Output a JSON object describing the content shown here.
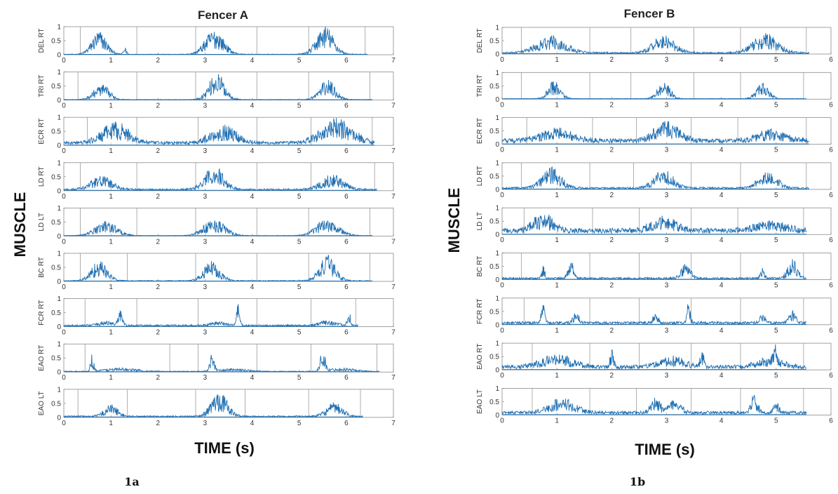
{
  "chart_data": [
    {
      "type": "line",
      "title": "Fencer A",
      "xlabel": "TIME (s)",
      "ylabel": "MUSCLE",
      "caption": "1a",
      "xlim": [
        0,
        7
      ],
      "ylim": [
        0,
        1
      ],
      "xticks": [
        "0",
        "1",
        "2",
        "3",
        "4",
        "5",
        "6",
        "7"
      ],
      "yticks": [
        "0",
        "0.5",
        "1"
      ],
      "color": "#1f6fb2",
      "channels": [
        {
          "name": "DEL RT",
          "markers": [
            0.35,
            1.55,
            2.8,
            4.1,
            5.2,
            6.4
          ],
          "bursts": [
            {
              "c": 0.75,
              "w": 0.28,
              "a": 0.7
            },
            {
              "c": 1.3,
              "w": 0.06,
              "a": 0.2
            },
            {
              "c": 3.2,
              "w": 0.35,
              "a": 0.75
            },
            {
              "c": 5.55,
              "w": 0.32,
              "a": 0.85
            }
          ],
          "base": 0.02
        },
        {
          "name": "TRI RT",
          "markers": [
            0.3,
            1.55,
            2.8,
            4.1,
            5.2,
            6.5
          ],
          "bursts": [
            {
              "c": 0.8,
              "w": 0.3,
              "a": 0.45
            },
            {
              "c": 3.25,
              "w": 0.3,
              "a": 0.8
            },
            {
              "c": 5.6,
              "w": 0.3,
              "a": 0.6
            }
          ],
          "base": 0.02
        },
        {
          "name": "ECR RT",
          "markers": [
            0.5,
            1.55,
            2.85,
            4.1,
            5.25,
            6.55
          ],
          "bursts": [
            {
              "c": 1.1,
              "w": 0.5,
              "a": 0.6
            },
            {
              "c": 3.4,
              "w": 0.5,
              "a": 0.5
            },
            {
              "c": 5.8,
              "w": 0.6,
              "a": 0.7
            }
          ],
          "base": 0.12
        },
        {
          "name": "LD RT",
          "markers": [
            0.35,
            1.55,
            2.8,
            4.1,
            5.25,
            6.6
          ],
          "bursts": [
            {
              "c": 0.8,
              "w": 0.4,
              "a": 0.4
            },
            {
              "c": 3.2,
              "w": 0.35,
              "a": 0.7
            },
            {
              "c": 5.7,
              "w": 0.4,
              "a": 0.45
            }
          ],
          "base": 0.06
        },
        {
          "name": "LD LT",
          "markers": [
            0.35,
            1.55,
            2.8,
            4.1,
            5.2,
            6.5
          ],
          "bursts": [
            {
              "c": 0.9,
              "w": 0.4,
              "a": 0.45
            },
            {
              "c": 3.2,
              "w": 0.4,
              "a": 0.5
            },
            {
              "c": 5.6,
              "w": 0.4,
              "a": 0.55
            }
          ],
          "base": 0.02
        },
        {
          "name": "BC RT",
          "markers": [
            0.35,
            1.35,
            2.8,
            4.1,
            5.2,
            6.5
          ],
          "bursts": [
            {
              "c": 0.75,
              "w": 0.3,
              "a": 0.6
            },
            {
              "c": 3.15,
              "w": 0.3,
              "a": 0.6
            },
            {
              "c": 5.6,
              "w": 0.3,
              "a": 0.75
            }
          ],
          "base": 0.03
        },
        {
          "name": "FCR RT",
          "markers": [
            0.45,
            1.55,
            2.85,
            4.1,
            5.25,
            6.2
          ],
          "bursts": [
            {
              "c": 1.2,
              "w": 0.08,
              "a": 0.5
            },
            {
              "c": 3.7,
              "w": 0.06,
              "a": 0.65
            },
            {
              "c": 6.05,
              "w": 0.06,
              "a": 0.5
            },
            {
              "c": 0.9,
              "w": 0.3,
              "a": 0.12
            },
            {
              "c": 3.3,
              "w": 0.3,
              "a": 0.1
            },
            {
              "c": 5.6,
              "w": 0.3,
              "a": 0.15
            }
          ],
          "base": 0.06
        },
        {
          "name": "EAO RT",
          "markers": [
            0.45,
            2.25,
            2.85,
            4.1,
            5.25,
            6.65
          ],
          "bursts": [
            {
              "c": 0.6,
              "w": 0.06,
              "a": 0.5
            },
            {
              "c": 3.15,
              "w": 0.08,
              "a": 0.55
            },
            {
              "c": 5.5,
              "w": 0.08,
              "a": 0.75
            },
            {
              "c": 1.2,
              "w": 0.6,
              "a": 0.1
            },
            {
              "c": 3.6,
              "w": 0.5,
              "a": 0.08
            },
            {
              "c": 5.9,
              "w": 0.5,
              "a": 0.1
            }
          ],
          "base": 0.03
        },
        {
          "name": "EAO LT",
          "markers": [
            0.3,
            1.35,
            2.8,
            3.85,
            5.2,
            6.3
          ],
          "bursts": [
            {
              "c": 1.0,
              "w": 0.25,
              "a": 0.35
            },
            {
              "c": 3.3,
              "w": 0.3,
              "a": 0.75
            },
            {
              "c": 5.75,
              "w": 0.3,
              "a": 0.4
            }
          ],
          "base": 0.05
        }
      ]
    },
    {
      "type": "line",
      "title": "Fencer B",
      "xlabel": "TIME (s)",
      "ylabel": "MUSCLE",
      "caption": "1b",
      "xlim": [
        0,
        6
      ],
      "ylim": [
        0,
        1
      ],
      "xticks": [
        "0",
        "1",
        "2",
        "3",
        "4",
        "5",
        "6"
      ],
      "yticks": [
        "0",
        "0.5",
        "1"
      ],
      "color": "#1f6fb2",
      "channels": [
        {
          "name": "DEL RT",
          "markers": [
            0.35,
            1.6,
            2.35,
            3.5,
            4.35,
            5.55
          ],
          "bursts": [
            {
              "c": 0.9,
              "w": 0.45,
              "a": 0.55
            },
            {
              "c": 2.95,
              "w": 0.35,
              "a": 0.55
            },
            {
              "c": 4.8,
              "w": 0.4,
              "a": 0.6
            }
          ],
          "base": 0.06
        },
        {
          "name": "TRI RT",
          "markers": [
            0.35,
            1.6,
            2.35,
            3.5,
            4.35,
            5.5
          ],
          "bursts": [
            {
              "c": 0.95,
              "w": 0.2,
              "a": 0.55
            },
            {
              "c": 2.95,
              "w": 0.2,
              "a": 0.55
            },
            {
              "c": 4.75,
              "w": 0.2,
              "a": 0.5
            }
          ],
          "base": 0.02
        },
        {
          "name": "ECR RT",
          "markers": [
            0.45,
            1.65,
            2.45,
            3.45,
            4.3,
            5.55
          ],
          "bursts": [
            {
              "c": 1.0,
              "w": 0.5,
              "a": 0.35
            },
            {
              "c": 3.0,
              "w": 0.4,
              "a": 0.55
            },
            {
              "c": 4.9,
              "w": 0.5,
              "a": 0.3
            }
          ],
          "base": 0.18
        },
        {
          "name": "LD RT",
          "markers": [
            0.35,
            1.6,
            2.4,
            3.45,
            4.35,
            5.55
          ],
          "bursts": [
            {
              "c": 0.9,
              "w": 0.3,
              "a": 0.65
            },
            {
              "c": 2.95,
              "w": 0.3,
              "a": 0.6
            },
            {
              "c": 4.85,
              "w": 0.3,
              "a": 0.5
            }
          ],
          "base": 0.07
        },
        {
          "name": "LD LT",
          "markers": [
            0.4,
            1.65,
            2.5,
            3.45,
            4.3,
            5.5
          ],
          "bursts": [
            {
              "c": 0.75,
              "w": 0.3,
              "a": 0.55
            },
            {
              "c": 2.95,
              "w": 0.4,
              "a": 0.4
            },
            {
              "c": 4.9,
              "w": 0.5,
              "a": 0.25
            }
          ],
          "base": 0.2
        },
        {
          "name": "BC RT",
          "markers": [
            0.35,
            1.6,
            2.5,
            3.45,
            4.35,
            5.5
          ],
          "bursts": [
            {
              "c": 1.25,
              "w": 0.08,
              "a": 0.7
            },
            {
              "c": 0.75,
              "w": 0.05,
              "a": 0.4
            },
            {
              "c": 3.35,
              "w": 0.15,
              "a": 0.45
            },
            {
              "c": 5.3,
              "w": 0.15,
              "a": 0.6
            },
            {
              "c": 4.75,
              "w": 0.06,
              "a": 0.35
            }
          ],
          "base": 0.07
        },
        {
          "name": "FCR RT",
          "markers": [
            0.4,
            1.6,
            2.5,
            3.45,
            4.35,
            5.5
          ],
          "bursts": [
            {
              "c": 0.75,
              "w": 0.06,
              "a": 0.6
            },
            {
              "c": 1.35,
              "w": 0.1,
              "a": 0.3
            },
            {
              "c": 3.4,
              "w": 0.06,
              "a": 0.6
            },
            {
              "c": 5.3,
              "w": 0.1,
              "a": 0.45
            },
            {
              "c": 4.75,
              "w": 0.08,
              "a": 0.3
            },
            {
              "c": 2.8,
              "w": 0.08,
              "a": 0.3
            }
          ],
          "base": 0.1
        },
        {
          "name": "EAO RT",
          "markers": [
            0.55,
            1.6,
            2.5,
            3.45,
            4.35,
            5.5
          ],
          "bursts": [
            {
              "c": 1.0,
              "w": 0.5,
              "a": 0.35
            },
            {
              "c": 3.1,
              "w": 0.4,
              "a": 0.3
            },
            {
              "c": 4.9,
              "w": 0.4,
              "a": 0.3
            },
            {
              "c": 2.0,
              "w": 0.06,
              "a": 0.5
            },
            {
              "c": 3.65,
              "w": 0.06,
              "a": 0.5
            },
            {
              "c": 5.0,
              "w": 0.06,
              "a": 0.45
            }
          ],
          "base": 0.15
        },
        {
          "name": "EAO LT",
          "markers": [
            0.55,
            1.6,
            2.45,
            3.45,
            4.35,
            5.5
          ],
          "bursts": [
            {
              "c": 1.1,
              "w": 0.4,
              "a": 0.45
            },
            {
              "c": 2.8,
              "w": 0.15,
              "a": 0.45
            },
            {
              "c": 3.15,
              "w": 0.2,
              "a": 0.35
            },
            {
              "c": 4.6,
              "w": 0.1,
              "a": 0.6
            },
            {
              "c": 5.0,
              "w": 0.1,
              "a": 0.3
            }
          ],
          "base": 0.12
        }
      ]
    }
  ]
}
